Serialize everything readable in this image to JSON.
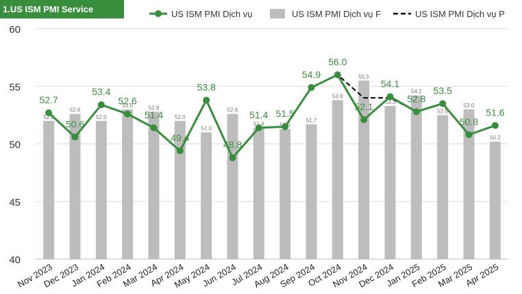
{
  "chart_data": {
    "type": "bar",
    "title": "1.US ISM PMI Service",
    "categories": [
      "Nov 2023",
      "Dec 2023",
      "Jan 2024",
      "Feb 2024",
      "Mar 2024",
      "Apr 2024",
      "May 2024",
      "Jun 2024",
      "Jul 2024",
      "Aug 2024",
      "Sep 2024",
      "Oct 2024",
      "Nov 2024",
      "Dec 2024",
      "Jan 2025",
      "Feb 2025",
      "Mar 2025",
      "Apr 2025"
    ],
    "ylim": [
      40,
      60
    ],
    "yticks": [
      40,
      45,
      50,
      55,
      60
    ],
    "grid": true,
    "legend_position": "top",
    "series": [
      {
        "name": "US ISM PMI Dịch vụ",
        "type": "line",
        "color": "#388e3c",
        "values": [
          52.7,
          50.6,
          53.4,
          52.6,
          51.4,
          49.4,
          53.8,
          48.8,
          51.4,
          51.5,
          54.9,
          56.0,
          52.1,
          54.1,
          52.8,
          53.5,
          50.8,
          51.6
        ],
        "labels": [
          "52.7",
          "50.6",
          "53.4",
          "52.6",
          "51.4",
          "49.4",
          "53.8",
          "48.8",
          "51.4",
          "51.5",
          "54.9",
          "56.0",
          "52.1",
          "54.1",
          "52.8",
          "53.5",
          "50.8",
          "51.6"
        ]
      },
      {
        "name": "US ISM PMI Dịch vụ F",
        "type": "bar",
        "color": "#bdbdbd",
        "values": [
          52.0,
          52.6,
          52.0,
          53.0,
          52.8,
          52.0,
          51.0,
          52.6,
          51.4,
          51.3,
          51.7,
          53.8,
          55.5,
          53.3,
          54.2,
          52.5,
          53.0,
          50.2
        ],
        "labels": [
          "52.0",
          "52.6",
          "52.0",
          "53.0",
          "52.8",
          "52.0",
          "51.0",
          "52.6",
          "51.4",
          "51.3",
          "51.7",
          "53.8",
          "55.5",
          "53.3",
          "54.2",
          "52.5",
          "53.0",
          "50.2"
        ]
      },
      {
        "name": "US ISM PMI Dịch vụ P",
        "type": "dashed-line",
        "color": "#000000",
        "values": [
          52.7,
          50.6,
          53.4,
          52.6,
          51.4,
          49.4,
          53.8,
          48.8,
          51.4,
          51.5,
          54.9,
          56.0,
          54.0,
          54.0,
          52.8,
          53.5,
          null,
          null
        ]
      }
    ]
  }
}
